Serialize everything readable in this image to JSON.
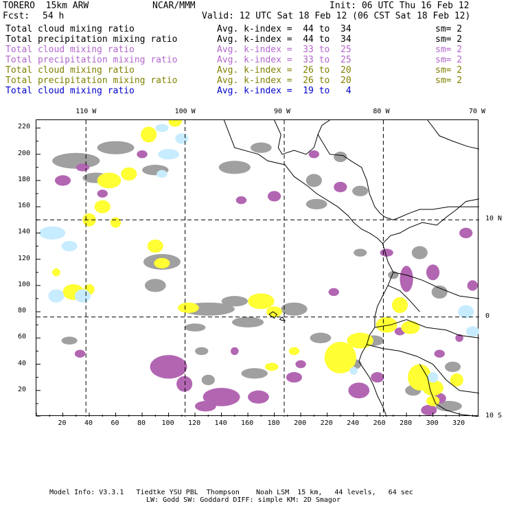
{
  "header": {
    "model": "TORERO  15km ARW",
    "org": "NCAR/MMM",
    "init": "Init: 06 UTC Thu 16 Feb 12",
    "fcst_label": "Fcst:",
    "fcst_value": "54 h",
    "valid": "Valid: 12 UTC Sat 18 Feb 12 (06 CST Sat 18 Feb 12)"
  },
  "legend_rows": [
    {
      "label": "Total cloud mixing ratio",
      "avg": "Avg. k-index =  44 to  34",
      "sm": "sm= 2",
      "color": "#000000"
    },
    {
      "label": "Total precipitation mixing ratio",
      "avg": "Avg. k-index =  44 to  34",
      "sm": "sm= 2",
      "color": "#000000"
    },
    {
      "label": "Total cloud mixing ratio",
      "avg": "Avg. k-index =  33 to  25",
      "sm": "sm= 2",
      "color": "#b266cc"
    },
    {
      "label": "Total precipitation mixing ratio",
      "avg": "Avg. k-index =  33 to  25",
      "sm": "sm= 2",
      "color": "#b266cc"
    },
    {
      "label": "Total cloud mixing ratio",
      "avg": "Avg. k-index =  26 to  20",
      "sm": "sm= 2",
      "color": "#808000"
    },
    {
      "label": "Total precipitation mixing ratio",
      "avg": "Avg. k-index =  26 to  20",
      "sm": "sm= 2",
      "color": "#808000"
    },
    {
      "label": "Total cloud mixing ratio",
      "avg": "Avg. k-index =  19 to   4",
      "sm": "",
      "color": "#0000cc"
    }
  ],
  "map": {
    "lon_labels": [
      "110 W",
      "100 W",
      "90 W",
      "80 W",
      "70 W"
    ],
    "lat_labels": [
      "10 N",
      "0",
      "10 S"
    ],
    "x_ticks": [
      "20",
      "40",
      "60",
      "80",
      "100",
      "120",
      "140",
      "160",
      "180",
      "200",
      "220",
      "240",
      "260",
      "280",
      "300",
      "320"
    ],
    "y_ticks": [
      "220",
      "200",
      "180",
      "160",
      "140",
      "120",
      "100",
      "80",
      "60",
      "40",
      "20"
    ],
    "grid_x_max": 335,
    "grid_y_max": 226,
    "colors": {
      "gray": "#a0a0a0",
      "purple": "#b266b2",
      "yellow": "#ffff33",
      "lightblue": "#c8ecff",
      "coast": "#000000"
    }
  },
  "footer": {
    "line1": "Model Info: V3.3.1   Tiedtke YSU PBL  Thompson    Noah LSM  15 km,   44 levels,   64 sec",
    "line2": "LW: Godd SW: Goddard DIFF: simple KM: 2D Smagor"
  }
}
